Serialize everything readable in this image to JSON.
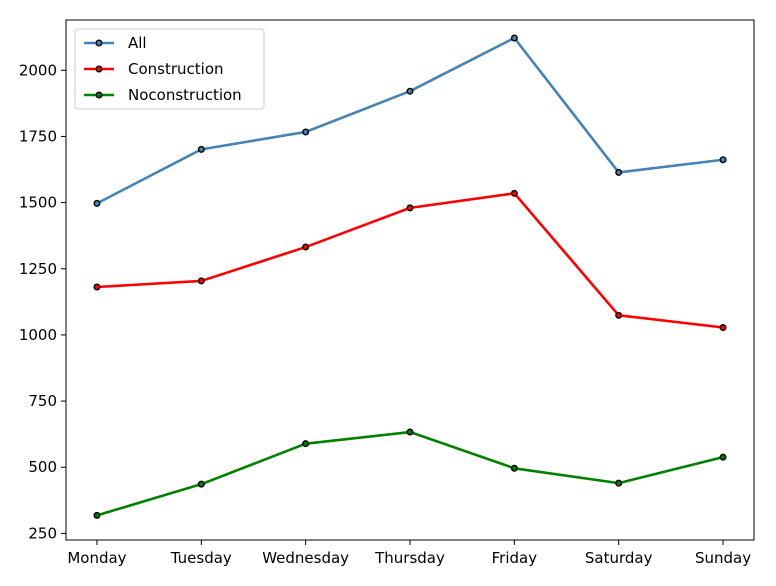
{
  "chart_data": {
    "type": "line",
    "title": "",
    "xlabel": "",
    "ylabel": "",
    "categories": [
      "Monday",
      "Tuesday",
      "Wednesday",
      "Thursday",
      "Friday",
      "Saturday",
      "Sunday"
    ],
    "ylim": [
      225,
      2190
    ],
    "yticks": [
      250,
      500,
      750,
      1000,
      1250,
      1500,
      1750,
      2000
    ],
    "ytick_labels": [
      "250",
      "500",
      "750",
      "1000",
      "1250",
      "1500",
      "1750",
      "2000"
    ],
    "grid": false,
    "legend_position": "upper-left",
    "marker": "circle",
    "marker_edge_color": "#000000",
    "series": [
      {
        "name": "All",
        "color": "#4682b4",
        "values": [
          1497,
          1701,
          1767,
          1921,
          2122,
          1614,
          1662
        ]
      },
      {
        "name": "Construction",
        "color": "#ff0000",
        "values": [
          1181,
          1204,
          1332,
          1480,
          1535,
          1074,
          1028
        ]
      },
      {
        "name": "Noconstruction",
        "color": "#008000",
        "values": [
          318,
          436,
          589,
          633,
          496,
          440,
          538
        ]
      }
    ]
  }
}
